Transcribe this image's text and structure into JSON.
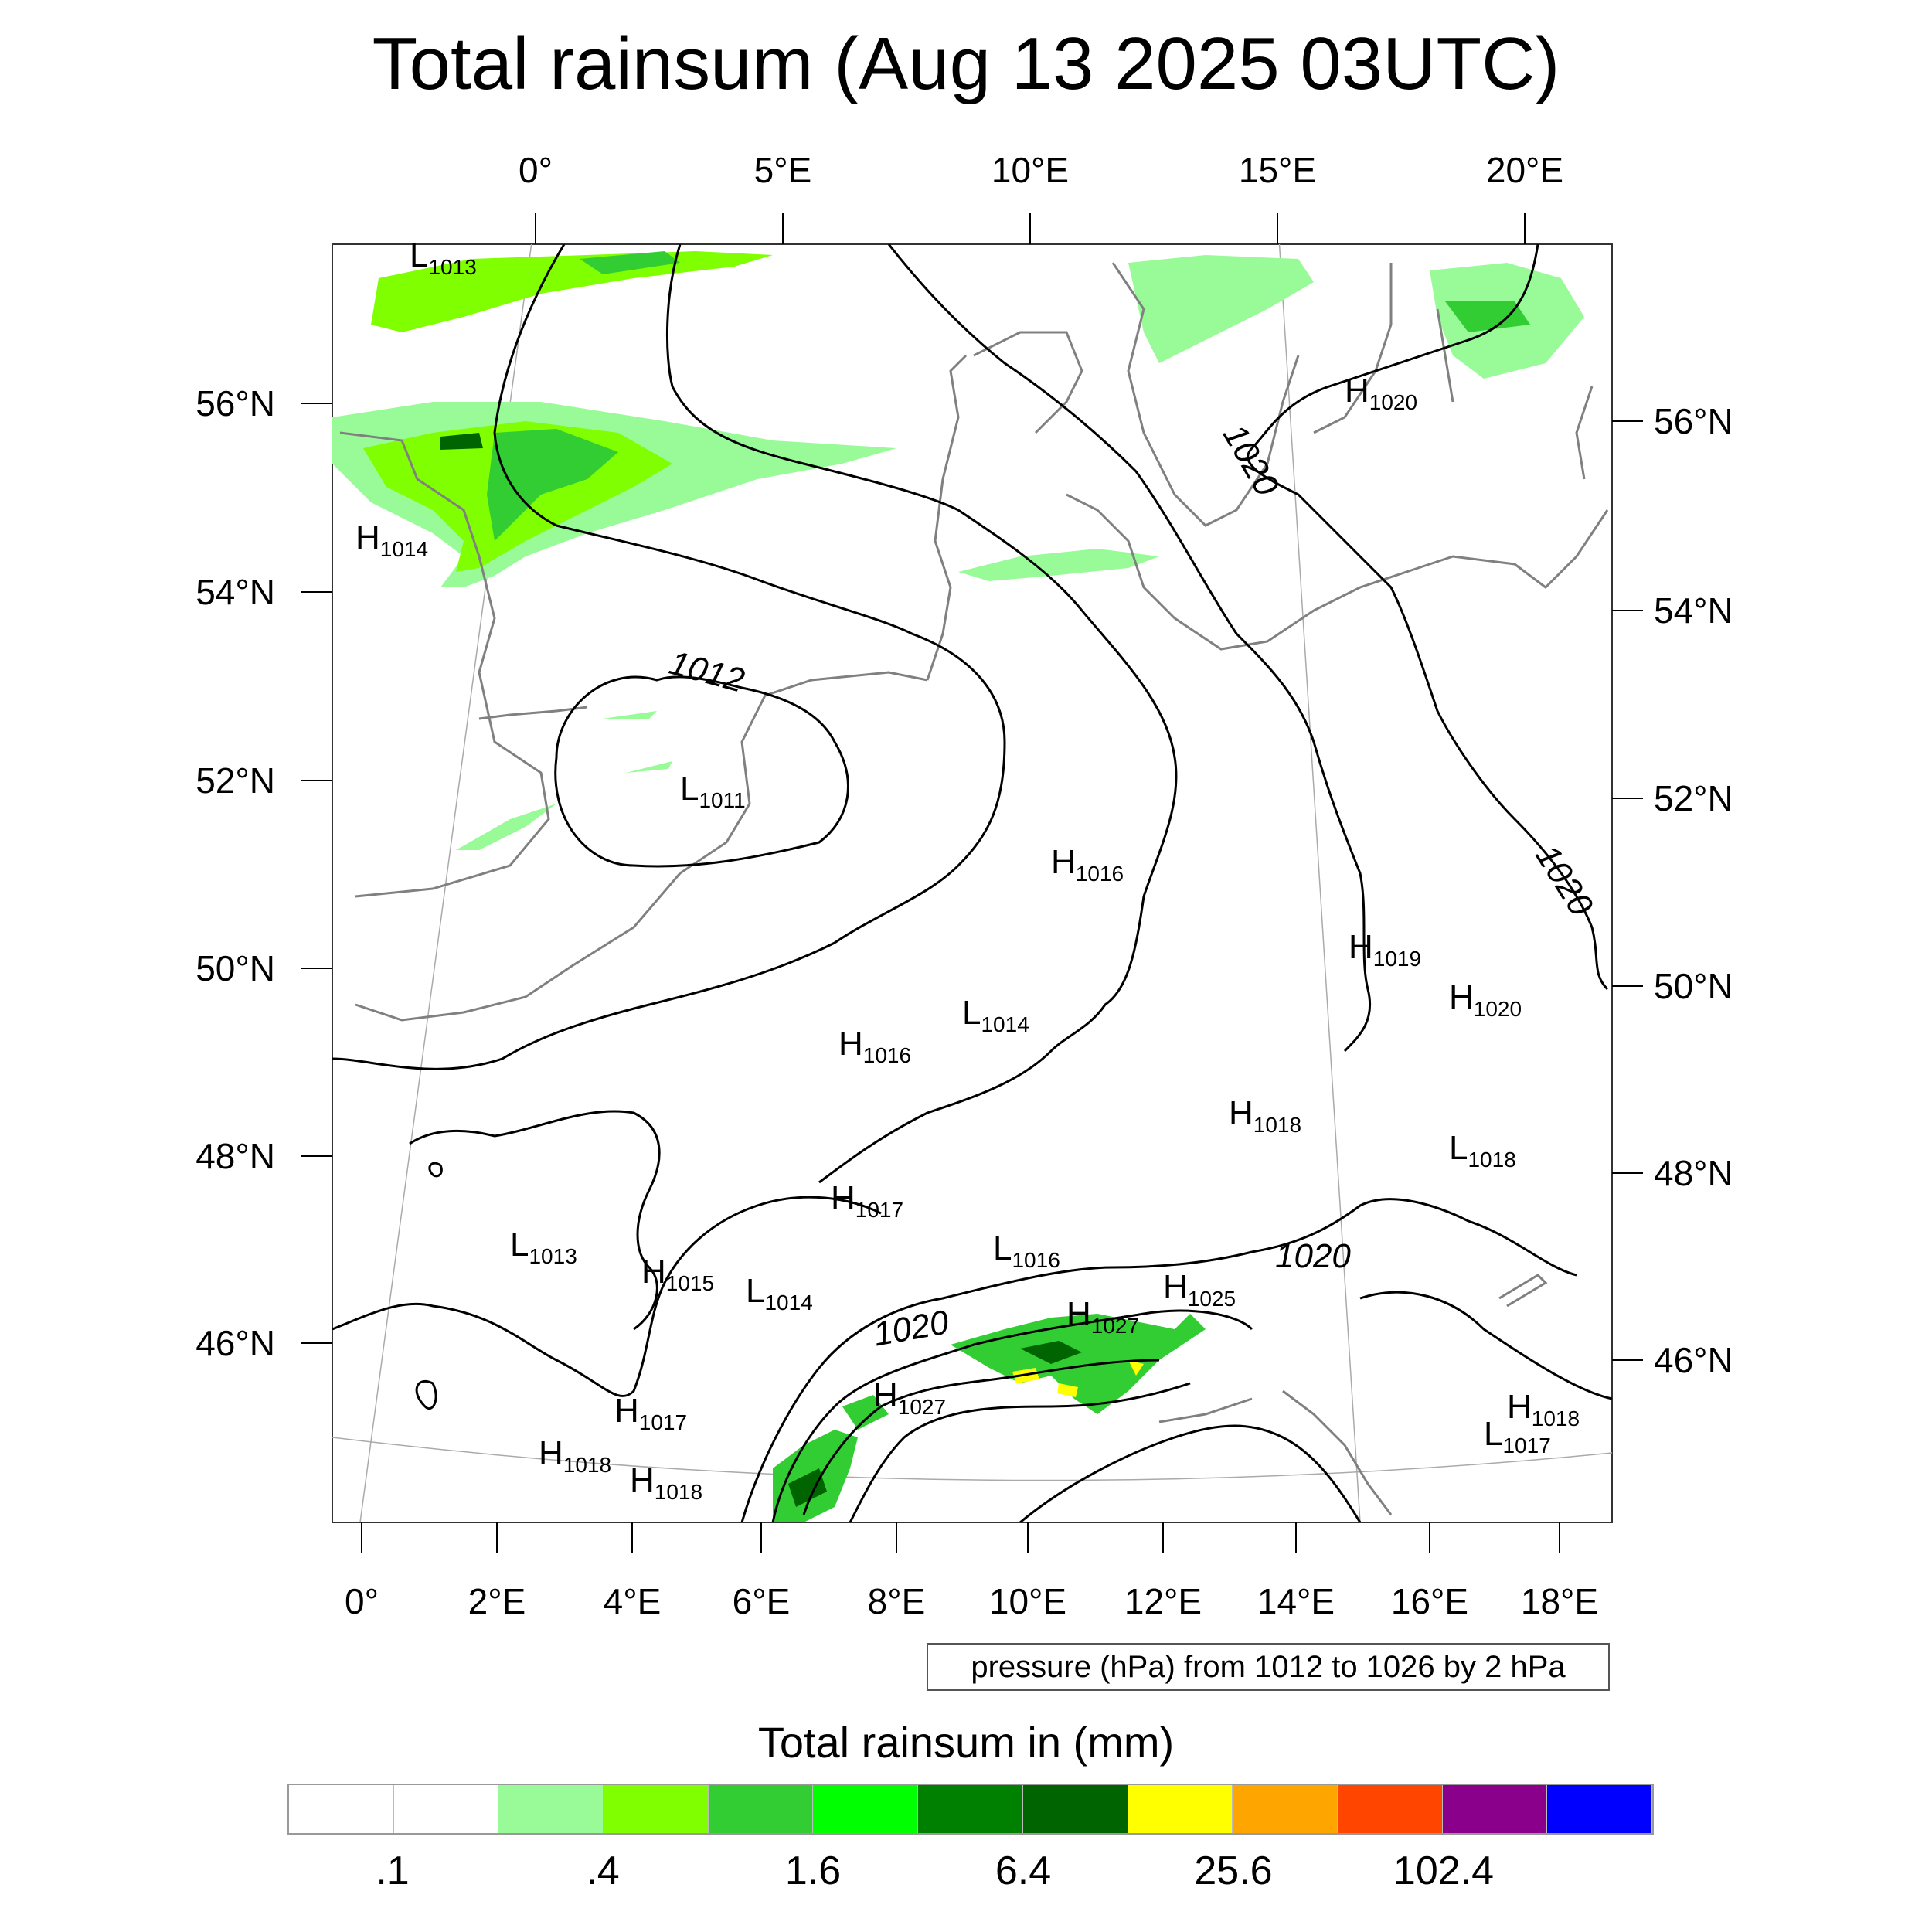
{
  "title": "Total rainsum (Aug 13 2025 03UTC)",
  "axes": {
    "top_lon_labels": [
      "0°",
      "5°E",
      "10°E",
      "15°E",
      "20°E"
    ],
    "bottom_lon_labels": [
      "0°",
      "2°E",
      "4°E",
      "6°E",
      "8°E",
      "10°E",
      "12°E",
      "14°E",
      "16°E",
      "18°E"
    ],
    "left_lat_labels": [
      "56°N",
      "54°N",
      "52°N",
      "50°N",
      "48°N",
      "46°N"
    ],
    "right_lat_labels": [
      "56°N",
      "54°N",
      "52°N",
      "50°N",
      "48°N",
      "46°N"
    ]
  },
  "pressure_centers": [
    {
      "type": "L",
      "value": "1013"
    },
    {
      "type": "H",
      "value": "1020"
    },
    {
      "type": "H",
      "value": "1014"
    },
    {
      "type": "L",
      "value": "1011"
    },
    {
      "type": "H",
      "value": "1016"
    },
    {
      "type": "H",
      "value": "1019"
    },
    {
      "type": "H",
      "value": "1020"
    },
    {
      "type": "L",
      "value": "1014"
    },
    {
      "type": "H",
      "value": "1016"
    },
    {
      "type": "H",
      "value": "1018"
    },
    {
      "type": "L",
      "value": "1018"
    },
    {
      "type": "H",
      "value": "1017"
    },
    {
      "type": "L",
      "value": "1016"
    },
    {
      "type": "H",
      "value": "1025"
    },
    {
      "type": "L",
      "value": "1013"
    },
    {
      "type": "H",
      "value": "1015"
    },
    {
      "type": "L",
      "value": "1014"
    },
    {
      "type": "H",
      "value": "1027"
    },
    {
      "type": "H",
      "value": "1027"
    },
    {
      "type": "H",
      "value": "1017"
    },
    {
      "type": "H",
      "value": "1018"
    },
    {
      "type": "H",
      "value": "1018"
    },
    {
      "type": "H",
      "value": "1018"
    },
    {
      "type": "L",
      "value": "1017"
    }
  ],
  "isobar_labels": [
    "1012",
    "1020",
    "1020",
    "1020",
    "1020"
  ],
  "pressure_note": "pressure (hPa) from 1012 to 1026 by 2 hPa",
  "colorbar": {
    "title": "Total rainsum in (mm)",
    "colors": [
      "#ffffff",
      "#ffffff",
      "#98fb98",
      "#7fff00",
      "#32cd32",
      "#00ff00",
      "#008000",
      "#006400",
      "#ffff00",
      "#ffa500",
      "#ff4500",
      "#8b008b",
      "#0000ff"
    ],
    "labels": [
      ".1",
      ".4",
      "1.6",
      "6.4",
      "25.6",
      "102.4"
    ]
  },
  "colors": {
    "coastline": "#808080",
    "isobar": "#000000",
    "rain_light": "#98fb98",
    "rain_mid": "#7fff00",
    "rain_green": "#32cd32",
    "rain_dark": "#006400"
  }
}
